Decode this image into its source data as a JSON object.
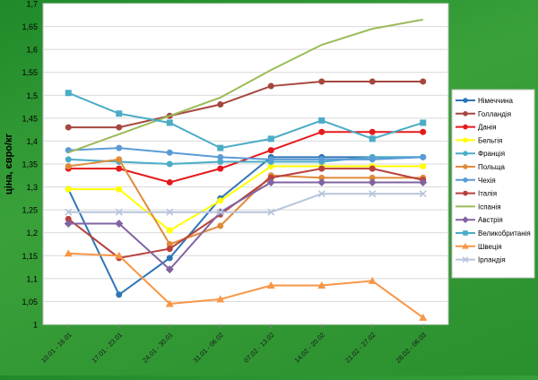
{
  "chart_data": {
    "type": "line",
    "title": "",
    "xlabel": "",
    "ylabel": "ціна, євро/кг",
    "ylim": [
      1,
      1.7
    ],
    "y_ticks": [
      "1",
      "1,05",
      "1,1",
      "1,15",
      "1,2",
      "1,25",
      "1,3",
      "1,35",
      "1,4",
      "1,45",
      "1,5",
      "1,55",
      "1,6",
      "1,65",
      "1,7"
    ],
    "grid": true,
    "legend_position": "right",
    "categories": [
      "10.01 - 16.01",
      "17.01 - 23.01",
      "24.01 - 30.01",
      "31.01 - 06.02",
      "07.02 - 13.02",
      "14.02 - 20.02",
      "21.02 - 27.02",
      "28.02 - 06.03"
    ],
    "series": [
      {
        "name": "Німеччина",
        "color": "#2e75b6",
        "marker": "circle",
        "values": [
          1.295,
          1.065,
          1.145,
          1.275,
          1.365,
          1.365,
          1.365,
          1.365
        ]
      },
      {
        "name": "Голландія",
        "color": "#a5473f",
        "marker": "circle",
        "values": [
          1.43,
          1.43,
          1.455,
          1.48,
          1.52,
          1.53,
          1.53,
          1.53
        ]
      },
      {
        "name": "Данія",
        "color": "#e41a1c",
        "marker": "circle",
        "values": [
          1.34,
          1.34,
          1.31,
          1.34,
          1.38,
          1.42,
          1.42,
          1.42
        ]
      },
      {
        "name": "Бельгія",
        "color": "#ffff00",
        "marker": "circle",
        "values": [
          1.295,
          1.295,
          1.205,
          1.27,
          1.345,
          1.345,
          1.345,
          1.345
        ]
      },
      {
        "name": "Франція",
        "color": "#4aacc6",
        "marker": "circle",
        "values": [
          1.36,
          1.355,
          1.35,
          1.355,
          1.355,
          1.355,
          1.365,
          1.365
        ]
      },
      {
        "name": "Польща",
        "color": "#e08b3a",
        "marker": "circle",
        "values": [
          1.345,
          1.36,
          1.175,
          1.215,
          1.325,
          1.32,
          1.32,
          1.32
        ]
      },
      {
        "name": "Чехія",
        "color": "#5b9bd5",
        "marker": "circle",
        "values": [
          1.38,
          1.385,
          1.375,
          1.365,
          1.36,
          1.36,
          1.36,
          1.365
        ]
      },
      {
        "name": "Італія",
        "color": "#b8413d",
        "marker": "circle",
        "values": [
          1.23,
          1.145,
          1.165,
          1.24,
          1.32,
          1.34,
          1.34,
          1.315
        ]
      },
      {
        "name": "Іспанія",
        "color": "#9bbb59",
        "marker": "none",
        "values": [
          1.375,
          1.415,
          1.455,
          1.495,
          1.555,
          1.61,
          1.645,
          1.665
        ]
      },
      {
        "name": "Австрія",
        "color": "#8064a2",
        "marker": "diamond",
        "values": [
          1.22,
          1.22,
          1.12,
          1.245,
          1.31,
          1.31,
          1.31,
          1.31
        ]
      },
      {
        "name": "Великобританія",
        "color": "#4bacc6",
        "marker": "square",
        "values": [
          1.505,
          1.46,
          1.44,
          1.385,
          1.405,
          1.445,
          1.405,
          1.44
        ]
      },
      {
        "name": "Швеція",
        "color": "#f79646",
        "marker": "triangle",
        "values": [
          1.155,
          1.15,
          1.045,
          1.055,
          1.085,
          1.085,
          1.095,
          1.015
        ]
      },
      {
        "name": "Ірландія",
        "color": "#b7c4dc",
        "marker": "x",
        "values": [
          1.245,
          1.245,
          1.245,
          1.245,
          1.245,
          1.285,
          1.285,
          1.285
        ]
      }
    ]
  }
}
